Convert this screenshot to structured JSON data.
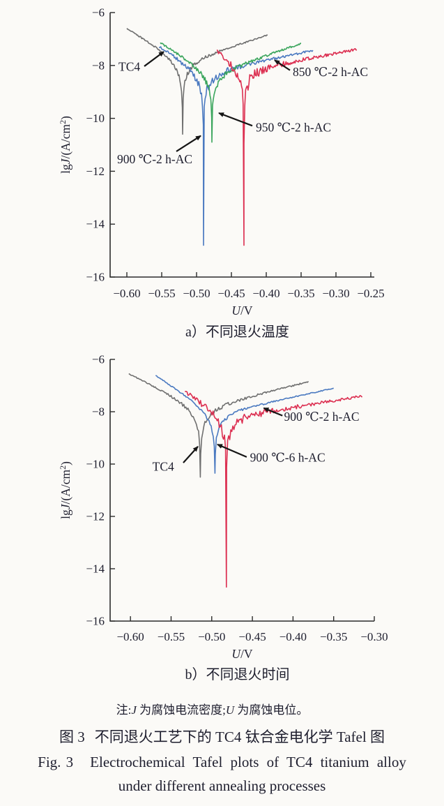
{
  "figure": {
    "note": {
      "p1": "注:",
      "i1": "J",
      "p2": " 为腐蚀电流密度;",
      "i2": "U",
      "p3": " 为腐蚀电位。"
    },
    "caption_zh": {
      "fig_no": "图 3",
      "text": "不同退火工艺下的 TC4 钛合金电化学 Tafel 图"
    },
    "caption_en": {
      "fig_no": "Fig. 3",
      "line1": "Electrochemical Tafel plots of TC4 titanium alloy",
      "line2": "under different annealing processes"
    }
  },
  "chart_data": [
    {
      "type": "line",
      "subtitle": "a）不同退火温度",
      "xlabel_italic": "U",
      "xlabel_suffix": "/V",
      "ylabel_prefix": "lg",
      "ylabel_italic": "J",
      "ylabel_suffix": "/(A/cm",
      "ylabel_sup": "2",
      "ylabel_close": ")",
      "xlim": [
        -0.624,
        -0.245
      ],
      "ylim": [
        -16,
        -6
      ],
      "grid": false,
      "legend": "none",
      "x_tick_vals": [
        -0.6,
        -0.55,
        -0.5,
        -0.45,
        -0.4,
        -0.35,
        -0.3,
        -0.25
      ],
      "x_tick_labels": [
        "−0.60",
        "−0.55",
        "−0.50",
        "−0.45",
        "−0.40",
        "−0.35",
        "−0.30",
        "−0.25"
      ],
      "y_tick_vals": [
        -6,
        -8,
        -10,
        -12,
        -14,
        -16
      ],
      "y_tick_labels": [
        "−6",
        "−8",
        "−10",
        "−12",
        "−14",
        "−16"
      ],
      "series": [
        {
          "name": "TC4",
          "color": "#6f6f6f",
          "e_corr": -0.52,
          "dip_lg": -10.6,
          "l0": -7.9,
          "beta_a": 0.116,
          "beta_c": 0.0615,
          "u_start": -0.6,
          "u_end": -0.398,
          "noise_amp": 0.035
        },
        {
          "name": "900 ℃-2 h-AC",
          "color": "#4a79c0",
          "e_corr": -0.49,
          "dip_lg": -14.8,
          "l0": -8.3,
          "beta_a": 0.18,
          "beta_c": 0.062,
          "u_start": -0.554,
          "u_end": -0.333,
          "noise_amp": 0.07
        },
        {
          "name": "950 ℃-2 h-AC",
          "color": "#3aa55c",
          "e_corr": -0.478,
          "dip_lg": -10.9,
          "l0": -8.35,
          "beta_a": 0.108,
          "beta_c": 0.061,
          "u_start": -0.552,
          "u_end": -0.35,
          "noise_amp": 0.05
        },
        {
          "name": "850 ℃-2 h-AC",
          "color": "#dc2f51",
          "e_corr": -0.432,
          "dip_lg": -14.8,
          "l0": -8.2,
          "beta_a": 0.2,
          "beta_c": 0.049,
          "u_start": -0.471,
          "u_end": -0.27,
          "noise_amp": 0.085
        }
      ],
      "annotations": [
        {
          "label": "TC4",
          "tx": -0.612,
          "ty": -8.2,
          "x1": -0.575,
          "y1": -8.03,
          "x2": -0.547,
          "y2": -7.48
        },
        {
          "label": "850 ℃-2 h-AC",
          "tx": -0.362,
          "ty": -8.4,
          "x1": -0.366,
          "y1": -8.18,
          "x2": -0.388,
          "y2": -7.8
        },
        {
          "label": "950 ℃-2 h-AC",
          "tx": -0.415,
          "ty": -10.5,
          "x1": -0.42,
          "y1": -10.28,
          "x2": -0.468,
          "y2": -9.8
        },
        {
          "label": "900 ℃-2 h-AC",
          "tx": -0.614,
          "ty": -11.7,
          "x1": -0.529,
          "y1": -11.25,
          "x2": -0.494,
          "y2": -10.66
        }
      ]
    },
    {
      "type": "line",
      "subtitle": "b）不同退火时间",
      "xlabel_italic": "U",
      "xlabel_suffix": "/V",
      "ylabel_prefix": "lg",
      "ylabel_italic": "J",
      "ylabel_suffix": "/(A/cm",
      "ylabel_sup": "2",
      "ylabel_close": ")",
      "xlim": [
        -0.625,
        -0.3
      ],
      "ylim": [
        -16,
        -6
      ],
      "grid": false,
      "legend": "none",
      "x_tick_vals": [
        -0.6,
        -0.55,
        -0.5,
        -0.45,
        -0.4,
        -0.35,
        -0.3
      ],
      "x_tick_labels": [
        "−0.60",
        "−0.55",
        "−0.50",
        "−0.45",
        "−0.40",
        "−0.35",
        "−0.30"
      ],
      "y_tick_vals": [
        -6,
        -8,
        -10,
        -12,
        -14,
        -16
      ],
      "y_tick_labels": [
        "−6",
        "−8",
        "−10",
        "−12",
        "−14",
        "−16"
      ],
      "series": [
        {
          "name": "TC4",
          "color": "#6f6f6f",
          "e_corr": -0.514,
          "dip_lg": -10.5,
          "l0": -7.9,
          "beta_a": 0.127,
          "beta_c": 0.065,
          "u_start": -0.602,
          "u_end": -0.381,
          "noise_amp": 0.04
        },
        {
          "name": "900 ℃-6 h-AC",
          "color": "#4a79c0",
          "e_corr": -0.496,
          "dip_lg": -10.35,
          "l0": -8.1,
          "beta_a": 0.146,
          "beta_c": 0.049,
          "u_start": -0.569,
          "u_end": -0.35,
          "noise_amp": 0.03
        },
        {
          "name": "900 ℃-2 h-AC",
          "color": "#dc2f51",
          "e_corr": -0.482,
          "dip_lg": -14.7,
          "l0": -8.25,
          "beta_a": 0.196,
          "beta_c": 0.0486,
          "u_start": -0.533,
          "u_end": -0.315,
          "noise_amp": 0.09
        }
      ],
      "annotations": [
        {
          "label": "900 ℃-2 h-AC",
          "tx": -0.411,
          "ty": -8.35,
          "x1": -0.413,
          "y1": -8.15,
          "x2": -0.436,
          "y2": -7.86
        },
        {
          "label": "900 ℃-6 h-AC",
          "tx": -0.453,
          "ty": -9.9,
          "x1": -0.457,
          "y1": -9.73,
          "x2": -0.493,
          "y2": -9.25
        },
        {
          "label": "TC4",
          "tx": -0.573,
          "ty": -10.25,
          "x1": -0.535,
          "y1": -9.95,
          "x2": -0.517,
          "y2": -9.33
        }
      ]
    }
  ]
}
